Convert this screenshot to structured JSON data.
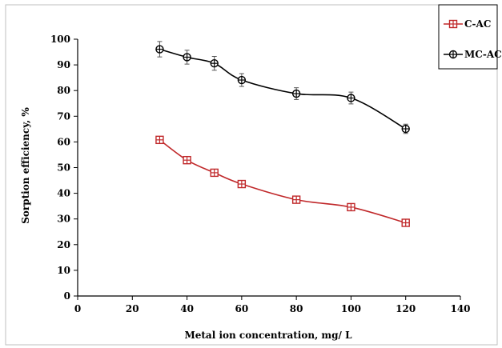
{
  "chart_data": {
    "type": "line",
    "title": "",
    "xlabel": "Metal ion concentration, mg/ L",
    "ylabel": "Sorption efficiency, %",
    "xlim": [
      0,
      140
    ],
    "ylim": [
      0,
      100
    ],
    "x_ticks": [
      "0",
      "20",
      "40",
      "60",
      "80",
      "100",
      "120",
      "140"
    ],
    "y_ticks": [
      "0",
      "10",
      "20",
      "30",
      "40",
      "50",
      "60",
      "70",
      "80",
      "90",
      "100"
    ],
    "grid": false,
    "legend_position": "top-right",
    "x": [
      30,
      40,
      50,
      60,
      80,
      100,
      120
    ],
    "series": [
      {
        "name": "C-AC",
        "color": "#c0282a",
        "marker": "square-cross",
        "values": [
          60.8,
          52.9,
          48.0,
          43.6,
          37.5,
          34.6,
          28.5
        ],
        "errors": [
          1.2,
          1.0,
          1.0,
          1.0,
          1.0,
          1.0,
          1.0
        ]
      },
      {
        "name": "MC-AC",
        "color": "#000000",
        "marker": "circle-cross",
        "values": [
          96.1,
          93.0,
          90.6,
          84.1,
          78.8,
          77.1,
          65.1
        ],
        "errors": [
          3.0,
          2.7,
          2.7,
          2.5,
          2.3,
          2.3,
          1.8
        ]
      }
    ]
  }
}
